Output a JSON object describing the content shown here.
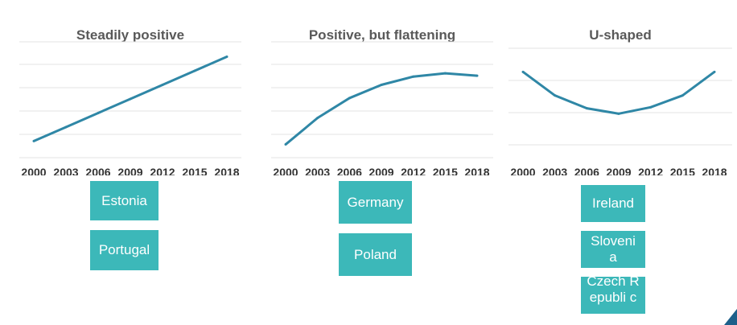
{
  "chart_data": [
    {
      "type": "line",
      "title": "Steadily positive",
      "categories": [
        "2000",
        "2003",
        "2006",
        "2009",
        "2012",
        "2015",
        "2018"
      ],
      "series": [
        {
          "values": [
            1.0,
            1.85,
            2.7,
            3.55,
            4.4,
            5.25,
            6.1
          ]
        }
      ],
      "ylim": [
        0,
        7
      ],
      "grid": true,
      "color": "#2f87a6"
    },
    {
      "type": "line",
      "title": "Positive, but flattening",
      "categories": [
        "2000",
        "2003",
        "2006",
        "2009",
        "2012",
        "2015",
        "2018"
      ],
      "series": [
        {
          "values": [
            0.8,
            2.4,
            3.6,
            4.4,
            4.9,
            5.1,
            4.95
          ]
        }
      ],
      "ylim": [
        0,
        7
      ],
      "grid": true,
      "color": "#2f87a6"
    },
    {
      "type": "line",
      "title": "U-shaped",
      "categories": [
        "2000",
        "2003",
        "2006",
        "2009",
        "2012",
        "2015",
        "2018"
      ],
      "series": [
        {
          "values": [
            3.4,
            2.3,
            1.7,
            1.45,
            1.75,
            2.3,
            3.4
          ]
        }
      ],
      "ylim": [
        0,
        4.5
      ],
      "grid": true,
      "color": "#2f87a6"
    }
  ],
  "groups": [
    [
      "Estonia",
      "Portugal"
    ],
    [
      "Germany",
      "Poland"
    ],
    [
      "Ireland",
      "Sloveni a",
      "Czech Republi c"
    ]
  ],
  "colors": {
    "tag_bg": "#3cb8b9",
    "tag_text": "#ffffff",
    "accent": "#1d5f8a"
  }
}
